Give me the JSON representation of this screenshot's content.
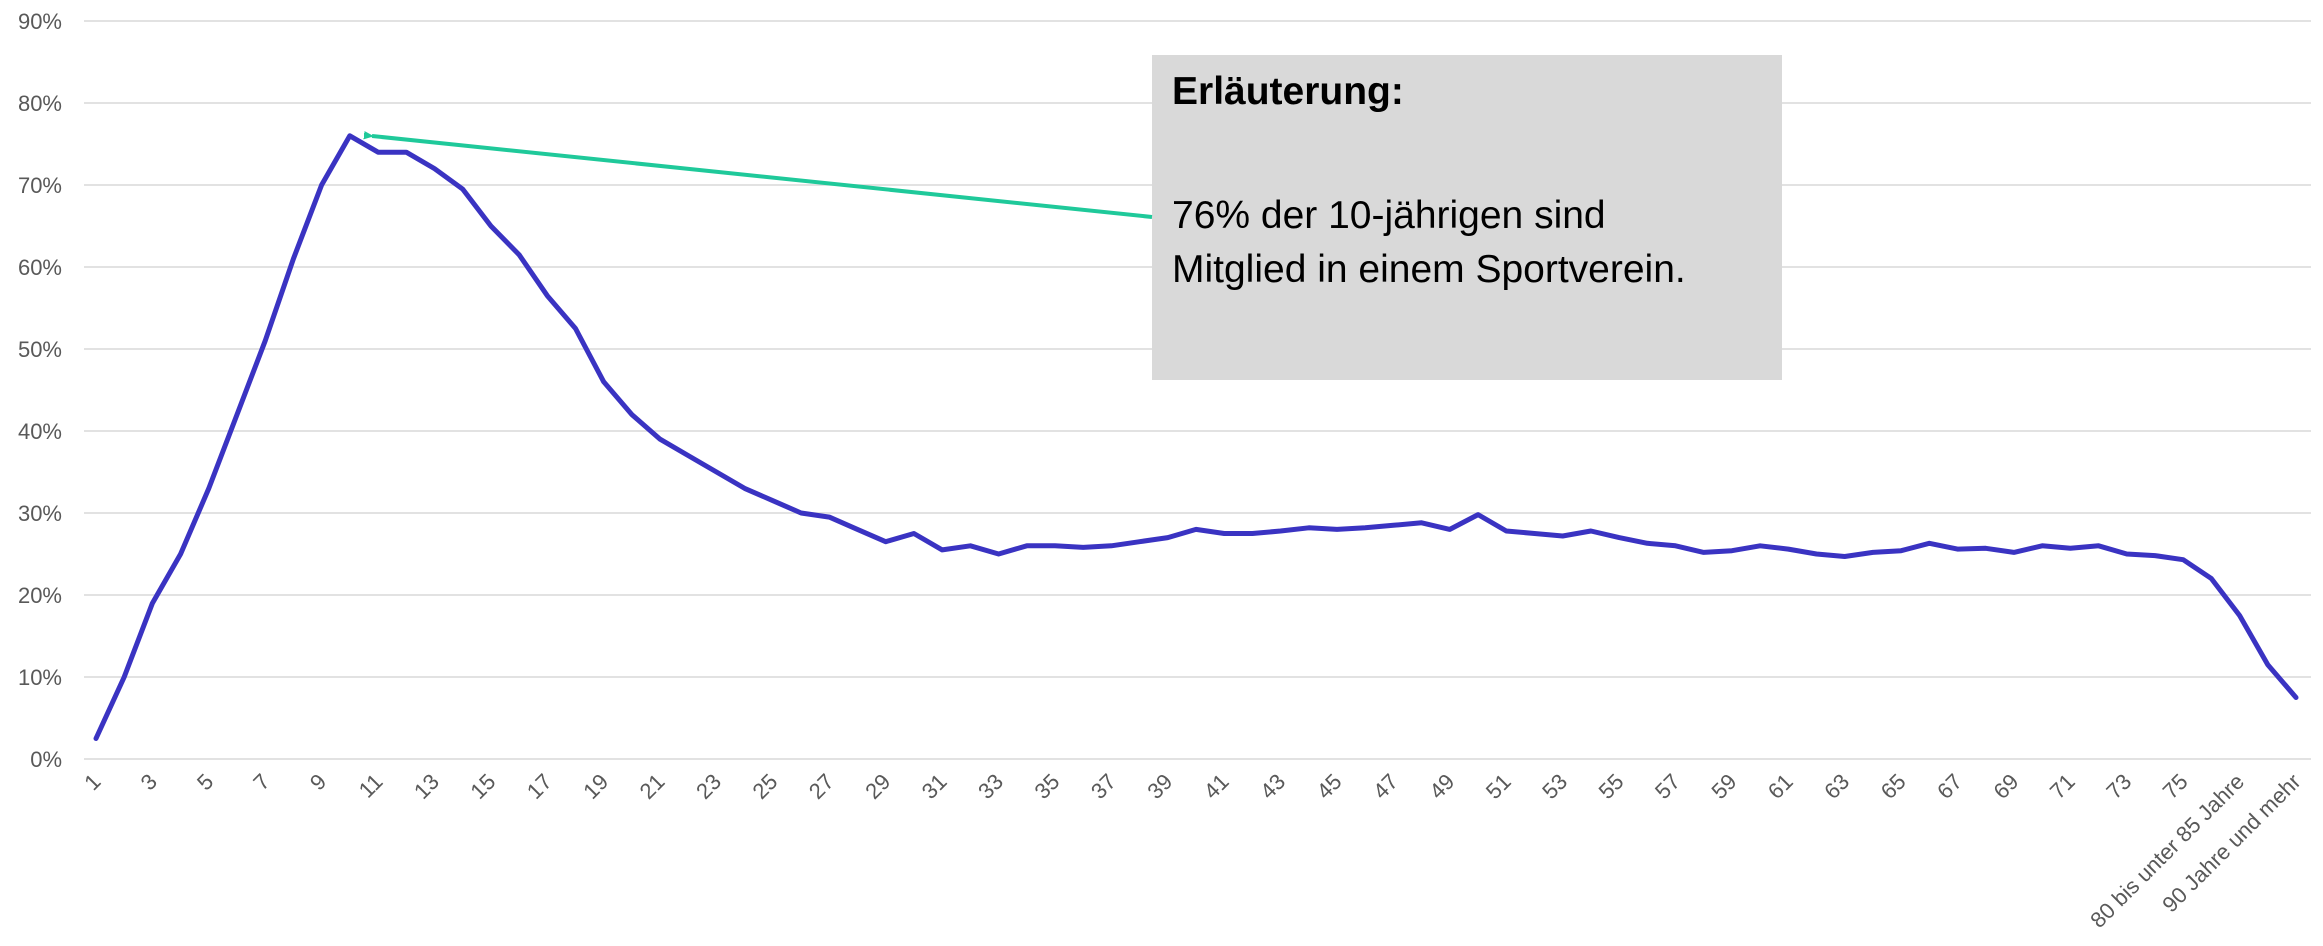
{
  "chart_data": {
    "type": "line",
    "categories": [
      "1",
      null,
      "3",
      null,
      "5",
      null,
      "7",
      null,
      "9",
      null,
      "11",
      null,
      "13",
      null,
      "15",
      null,
      "17",
      null,
      "19",
      null,
      "21",
      null,
      "23",
      null,
      "25",
      null,
      "27",
      null,
      "29",
      null,
      "31",
      null,
      "33",
      null,
      "35",
      null,
      "37",
      null,
      "39",
      null,
      "41",
      null,
      "43",
      null,
      "45",
      null,
      "47",
      null,
      "49",
      null,
      "51",
      null,
      "53",
      null,
      "55",
      null,
      "57",
      null,
      "59",
      null,
      "61",
      null,
      "63",
      null,
      "65",
      null,
      "67",
      null,
      "69",
      null,
      "71",
      null,
      "73",
      null,
      "75",
      null,
      "80 bis unter 85 Jahre",
      null,
      "90 Jahre und mehr"
    ],
    "series": [
      {
        "color": "#3a33c2",
        "values": [
          2.5,
          10,
          19,
          25,
          33,
          42,
          51,
          61,
          70,
          76,
          74,
          74,
          72,
          69.5,
          65,
          61.5,
          56.5,
          52.5,
          46,
          42,
          39,
          37,
          35,
          33,
          31.5,
          30,
          29.5,
          28,
          26.5,
          27.5,
          25.5,
          26,
          25,
          26,
          26,
          25.8,
          26,
          26.5,
          27,
          28,
          27.5,
          27.5,
          27.8,
          28.2,
          28,
          28.2,
          28.5,
          28.8,
          28,
          29.8,
          27.8,
          27.5,
          27.2,
          27.8,
          27,
          26.3,
          26,
          25.2,
          25.4,
          26,
          25.6,
          25,
          24.7,
          25.2,
          25.4,
          26.3,
          25.6,
          25.7,
          25.2,
          26,
          25.7,
          26,
          25,
          24.8,
          24.3,
          22,
          17.5,
          11.5,
          7.5
        ]
      }
    ],
    "ylim": [
      0,
      90
    ],
    "yticks": [
      {
        "value": 0,
        "label": "0%"
      },
      {
        "value": 10,
        "label": "10%"
      },
      {
        "value": 20,
        "label": "20%"
      },
      {
        "value": 30,
        "label": "30%"
      },
      {
        "value": 40,
        "label": "40%"
      },
      {
        "value": 50,
        "label": "50%"
      },
      {
        "value": 60,
        "label": "60%"
      },
      {
        "value": 70,
        "label": "70%"
      },
      {
        "value": 80,
        "label": "80%"
      },
      {
        "value": 90,
        "label": "90%"
      }
    ],
    "grid": true,
    "annotation": {
      "title": "Erläuterung:",
      "lines": [
        "76% der 10-jährigen sind",
        "Mitglied in einem Sportverein."
      ]
    }
  }
}
